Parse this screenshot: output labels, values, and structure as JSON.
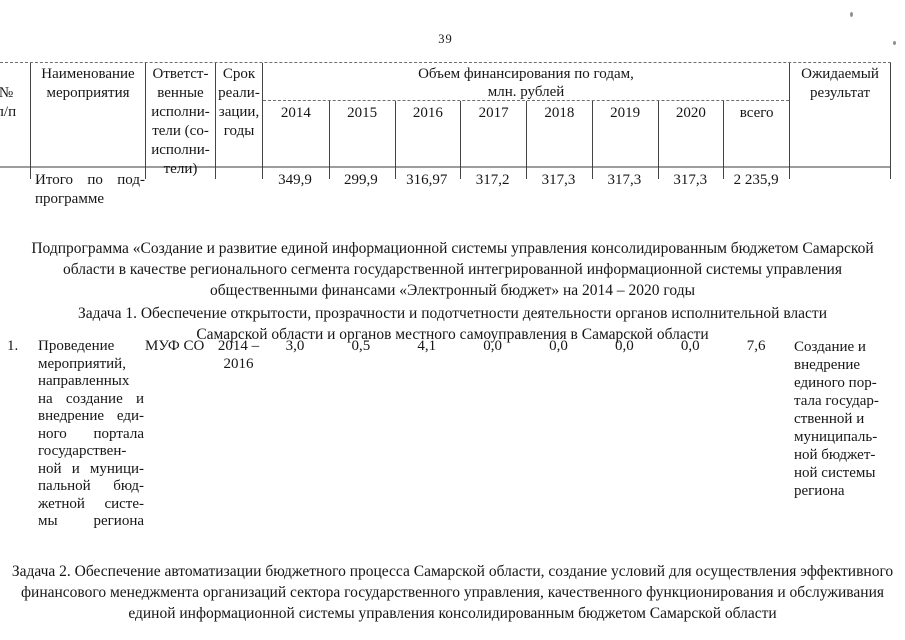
{
  "page": {
    "number": "39"
  },
  "table": {
    "headers": {
      "num": "№\nп/п",
      "name": "Наименование\nмероприятия",
      "executors": "Ответст-\nвенные\nисполни-\nтели (со-\nисполни-\nтели)",
      "term": "Срок\nреали-\nзации,\nгоды",
      "funding": "Объем финансирования по годам,\nмлн. рублей",
      "years": [
        "2014",
        "2015",
        "2016",
        "2017",
        "2018",
        "2019",
        "2020",
        "всего"
      ],
      "result": "Ожидаемый\nрезультат"
    },
    "total_row": {
      "label": "Итого по под-\nпрограмме",
      "values": [
        "349,9",
        "299,9",
        "316,97",
        "317,2",
        "317,3",
        "317,3",
        "317,3",
        "2 235,9"
      ]
    },
    "row1": {
      "num": "1.",
      "name": "Проведение\nмероприятий,\nнаправленных\nна создание и\nвнедрение еди-\nного портала\nгосударствен-\nной и муници-\nпальной бюд-\nжетной систе-\nмы региона",
      "executor": "МУФ СО",
      "term": "2014 –\n2016",
      "values": [
        "3,0",
        "0,5",
        "4,1",
        "0,0",
        "0,0",
        "0,0",
        "0,0",
        "7,6"
      ],
      "result": "Создание и\nвнедрение\nединого пор-\nтала государ-\nственной и\nмуниципаль-\nной бюджет-\nной системы\nрегиона"
    }
  },
  "paragraphs": {
    "subprogram": "Подпрограмма «Создание и развитие единой информационной системы управления консолидированным бюджетом Самарской\nобласти в качестве регионального сегмента государственной интегрированной информационной системы управления\nобщественными финансами «Электронный бюджет» на 2014 – 2020 годы",
    "task1": "Задача 1. Обеспечение открытости, прозрачности и подотчетности деятельности органов исполнительной власти\nСамарской области и органов местного самоуправления в Самарской области",
    "task2": "Задача 2. Обеспечение автоматизации бюджетного процесса Самарской области, создание условий для осуществления эффективного\nфинансового менеджмента организаций сектора государственного управления, качественного функционирования и обслуживания\nединой информационной системы управления консолидированным бюджетом Самарской области"
  }
}
